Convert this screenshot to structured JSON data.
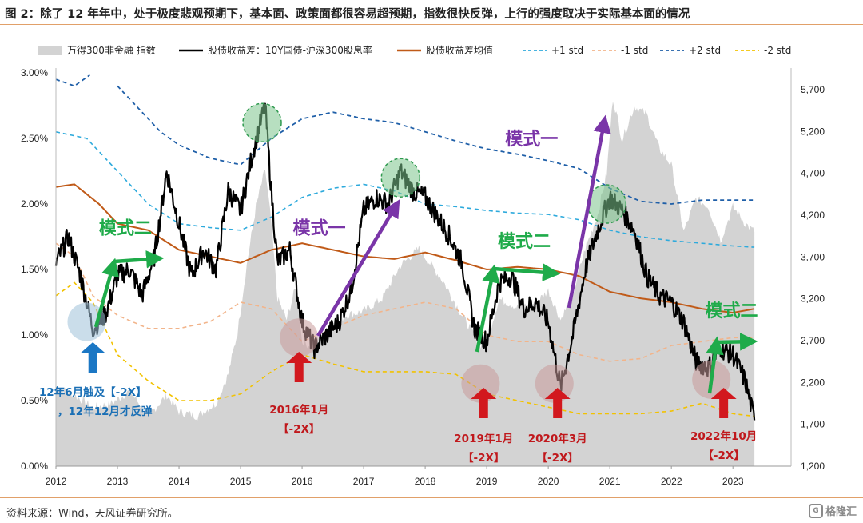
{
  "page": {
    "title": "图 2：除了 12 年年中，处于极度悲观预期下，基本面、政策面都很容易超预期，指数很快反弹，上行的强度取决于实际基本面的情况",
    "source": "资料来源：Wind，天风证券研究所。",
    "watermark": "格隆汇"
  },
  "chart_data": {
    "type": "line",
    "title": "",
    "xlabel": "",
    "ylabel": "",
    "x_ticks": [
      "2012",
      "2013",
      "2014",
      "2015",
      "2016",
      "2017",
      "2018",
      "2019",
      "2020",
      "2021",
      "2022",
      "2023"
    ],
    "y_left_ticks": [
      "0.00%",
      "0.50%",
      "1.00%",
      "1.50%",
      "2.00%",
      "2.50%",
      "3.00%"
    ],
    "y_right_ticks": [
      "1,200",
      "1,700",
      "2,200",
      "2,700",
      "3,200",
      "3,700",
      "4,200",
      "4,700",
      "5,200",
      "5,700"
    ],
    "ylim_left": [
      0,
      3.0
    ],
    "ylim_right": [
      1200,
      5900
    ],
    "legend": [
      {
        "name": "万得300非金融 指数",
        "color": "#d3d3d3",
        "style": "area"
      },
      {
        "name": "股债收益差：10Y国债-沪深300股息率",
        "color": "#000000",
        "style": "solid"
      },
      {
        "name": "股债收益差均值",
        "color": "#c05a18",
        "style": "solid"
      },
      {
        "name": "+1 std",
        "color": "#2eaadc",
        "style": "dashed"
      },
      {
        "name": "-1 std",
        "color": "#f2b48a",
        "style": "dashed"
      },
      {
        "name": "+2 std",
        "color": "#1f5fa8",
        "style": "dashed"
      },
      {
        "name": "-2 std",
        "color": "#f2c200",
        "style": "dashed"
      }
    ],
    "series": [
      {
        "name": "万得300非金融 指数",
        "axis": "right",
        "x": [
          2012.0,
          2012.3,
          2012.6,
          2012.9,
          2013.2,
          2013.5,
          2013.8,
          2014.0,
          2014.3,
          2014.6,
          2014.8,
          2014.95,
          2015.1,
          2015.25,
          2015.4,
          2015.5,
          2015.6,
          2015.75,
          2015.9,
          2016.0,
          2016.1,
          2016.4,
          2016.7,
          2017.0,
          2017.3,
          2017.6,
          2017.9,
          2018.1,
          2018.3,
          2018.6,
          2018.9,
          2019.0,
          2019.2,
          2019.5,
          2019.8,
          2020.0,
          2020.2,
          2020.4,
          2020.6,
          2020.8,
          2020.95,
          2021.05,
          2021.2,
          2021.4,
          2021.6,
          2021.8,
          2022.0,
          2022.2,
          2022.4,
          2022.6,
          2022.8,
          2023.0,
          2023.2,
          2023.35
        ],
        "values": [
          2150,
          2050,
          1900,
          1950,
          2100,
          1800,
          2050,
          1850,
          1800,
          1950,
          2300,
          2800,
          3600,
          4300,
          4750,
          4100,
          3200,
          2950,
          3350,
          2700,
          2650,
          2800,
          3000,
          3050,
          3200,
          3600,
          3800,
          3600,
          3400,
          3000,
          2650,
          2700,
          3200,
          3100,
          3150,
          3300,
          2950,
          3250,
          3800,
          4200,
          4700,
          5600,
          5100,
          5500,
          5400,
          5000,
          4800,
          4000,
          4400,
          4300,
          3900,
          4300,
          4100,
          4000
        ]
      },
      {
        "name": "股债收益差：10Y国债-沪深300股息率",
        "axis": "left",
        "x": [
          2012.0,
          2012.2,
          2012.4,
          2012.6,
          2012.8,
          2013.0,
          2013.2,
          2013.4,
          2013.6,
          2013.8,
          2014.0,
          2014.2,
          2014.4,
          2014.6,
          2014.8,
          2015.0,
          2015.2,
          2015.4,
          2015.5,
          2015.6,
          2015.8,
          2016.0,
          2016.2,
          2016.4,
          2016.6,
          2016.8,
          2017.0,
          2017.2,
          2017.4,
          2017.6,
          2017.8,
          2018.0,
          2018.2,
          2018.4,
          2018.6,
          2018.8,
          2019.0,
          2019.2,
          2019.4,
          2019.6,
          2019.8,
          2020.0,
          2020.2,
          2020.4,
          2020.6,
          2020.8,
          2021.0,
          2021.2,
          2021.4,
          2021.6,
          2021.8,
          2022.0,
          2022.2,
          2022.4,
          2022.6,
          2022.8,
          2023.0,
          2023.2,
          2023.35
        ],
        "values": [
          1.55,
          1.75,
          1.45,
          1.05,
          1.15,
          1.45,
          1.5,
          1.3,
          1.6,
          2.25,
          1.85,
          1.45,
          1.65,
          1.5,
          2.1,
          1.95,
          2.4,
          2.75,
          2.1,
          1.55,
          1.65,
          1.1,
          0.9,
          1.0,
          1.1,
          1.35,
          1.95,
          2.05,
          2.0,
          2.25,
          2.1,
          2.05,
          1.9,
          1.75,
          1.55,
          1.05,
          0.95,
          1.4,
          1.45,
          1.2,
          1.25,
          1.1,
          0.6,
          1.0,
          1.5,
          1.8,
          2.05,
          1.95,
          1.8,
          1.45,
          1.3,
          1.25,
          1.1,
          0.8,
          0.75,
          0.9,
          0.85,
          0.65,
          0.35
        ]
      },
      {
        "name": "股债收益差均值",
        "axis": "left",
        "x": [
          2012.0,
          2012.3,
          2012.7,
          2013.0,
          2013.5,
          2014.0,
          2014.5,
          2015.0,
          2015.5,
          2016.0,
          2016.5,
          2017.0,
          2017.5,
          2018.0,
          2018.5,
          2019.0,
          2019.5,
          2020.0,
          2020.5,
          2021.0,
          2021.5,
          2022.0,
          2022.5,
          2023.0,
          2023.35
        ],
        "values": [
          2.13,
          2.15,
          2.0,
          1.85,
          1.8,
          1.65,
          1.6,
          1.55,
          1.65,
          1.7,
          1.65,
          1.6,
          1.58,
          1.63,
          1.57,
          1.5,
          1.52,
          1.5,
          1.45,
          1.33,
          1.28,
          1.25,
          1.2,
          1.17,
          1.2
        ]
      },
      {
        "name": "+1 std",
        "axis": "left",
        "x": [
          2012.0,
          2012.5,
          2013.0,
          2013.5,
          2014.0,
          2014.5,
          2015.0,
          2015.5,
          2016.0,
          2016.5,
          2017.0,
          2017.5,
          2018.0,
          2018.5,
          2019.0,
          2019.5,
          2020.0,
          2020.5,
          2021.0,
          2021.5,
          2022.0,
          2022.5,
          2023.0,
          2023.35
        ],
        "values": [
          2.55,
          2.5,
          2.25,
          2.0,
          1.85,
          1.82,
          1.8,
          1.9,
          2.05,
          2.12,
          2.15,
          2.1,
          2.0,
          1.98,
          1.95,
          1.93,
          1.92,
          1.88,
          1.8,
          1.75,
          1.72,
          1.7,
          1.68,
          1.67
        ]
      },
      {
        "name": "-1 std",
        "axis": "left",
        "x": [
          2012.0,
          2012.3,
          2012.6,
          2013.0,
          2013.5,
          2014.0,
          2014.5,
          2015.0,
          2015.5,
          2016.0,
          2016.5,
          2017.0,
          2017.5,
          2018.0,
          2018.5,
          2019.0,
          2019.5,
          2020.0,
          2020.5,
          2021.0,
          2021.5,
          2022.0,
          2022.5,
          2023.0,
          2023.35
        ],
        "values": [
          1.7,
          1.6,
          1.3,
          1.15,
          1.05,
          1.05,
          1.1,
          1.25,
          1.2,
          0.95,
          1.05,
          1.15,
          1.2,
          1.25,
          1.2,
          1.0,
          0.95,
          0.95,
          0.85,
          0.8,
          0.82,
          0.92,
          0.95,
          0.98,
          0.98
        ]
      },
      {
        "name": "+2 std",
        "axis": "left",
        "x": [
          2012.0,
          2012.3,
          2012.6,
          2013.0,
          2013.3,
          2013.7,
          2014.0,
          2014.5,
          2015.0,
          2015.5,
          2016.0,
          2016.5,
          2017.0,
          2017.5,
          2018.0,
          2018.5,
          2019.0,
          2019.5,
          2020.0,
          2020.5,
          2021.0,
          2021.5,
          2022.0,
          2022.5,
          2023.0,
          2023.35
        ],
        "values": [
          2.95,
          2.9,
          3.0,
          2.9,
          2.75,
          2.55,
          2.45,
          2.35,
          2.3,
          2.5,
          2.65,
          2.7,
          2.65,
          2.62,
          2.55,
          2.48,
          2.42,
          2.38,
          2.33,
          2.27,
          2.12,
          2.02,
          2.0,
          2.03,
          2.03,
          2.03
        ]
      },
      {
        "name": "-2 std",
        "axis": "left",
        "x": [
          2012.0,
          2012.3,
          2012.6,
          2013.0,
          2013.5,
          2014.0,
          2014.5,
          2015.0,
          2015.5,
          2016.0,
          2016.5,
          2017.0,
          2017.5,
          2018.0,
          2018.5,
          2019.0,
          2019.5,
          2020.0,
          2020.5,
          2021.0,
          2021.5,
          2022.0,
          2022.5,
          2023.0,
          2023.35
        ],
        "values": [
          1.3,
          1.4,
          1.25,
          0.85,
          0.65,
          0.5,
          0.5,
          0.55,
          0.72,
          0.85,
          0.78,
          0.72,
          0.72,
          0.72,
          0.7,
          0.55,
          0.5,
          0.45,
          0.4,
          0.4,
          0.4,
          0.42,
          0.48,
          0.4,
          0.38
        ]
      }
    ],
    "circles": [
      {
        "kind": "trough",
        "x": 2012.5,
        "y": 1.1,
        "color": "#9fc1d9"
      },
      {
        "kind": "peak",
        "x": 2015.35,
        "y": 2.62,
        "color": "#7cc48d"
      },
      {
        "kind": "trough",
        "x": 2015.95,
        "y": 0.98,
        "color": "#c99a9a"
      },
      {
        "kind": "peak",
        "x": 2017.6,
        "y": 2.2,
        "color": "#7cc48d"
      },
      {
        "kind": "trough",
        "x": 2018.9,
        "y": 0.63,
        "color": "#c99a9a"
      },
      {
        "kind": "trough",
        "x": 2020.1,
        "y": 0.63,
        "color": "#c99a9a"
      },
      {
        "kind": "peak",
        "x": 2020.95,
        "y": 2.0,
        "color": "#7cc48d"
      },
      {
        "kind": "trough",
        "x": 2022.65,
        "y": 0.66,
        "color": "#c99a9a"
      }
    ],
    "annotations": [
      {
        "text": "模式二",
        "color": "#1fab4a",
        "x": 2012.7,
        "y": 1.77
      },
      {
        "text": "模式一",
        "color": "#7a35a8",
        "x": 2015.85,
        "y": 1.77
      },
      {
        "text": "模式一",
        "color": "#7a35a8",
        "x": 2019.3,
        "y": 2.45
      },
      {
        "text": "模式二",
        "color": "#1fab4a",
        "x": 2019.18,
        "y": 1.67
      },
      {
        "text": "模式二",
        "color": "#1fab4a",
        "x": 2022.55,
        "y": 1.14
      }
    ],
    "event_labels": [
      {
        "lines": [
          "12年6月触及【-2X】",
          "，12年12月才反弹"
        ],
        "color": "#1a6fb5",
        "x": 2012.6
      },
      {
        "lines": [
          "2016年1月",
          "【-2X】"
        ],
        "color": "#c0181c",
        "x": 2015.95
      },
      {
        "lines": [
          "2019年1月",
          "【-2X】"
        ],
        "color": "#c0181c",
        "x": 2018.95
      },
      {
        "lines": [
          "2020年3月",
          "【-2X】"
        ],
        "color": "#c0181c",
        "x": 2020.15
      },
      {
        "lines": [
          "2022年10月",
          "【-2X】"
        ],
        "color": "#c0181c",
        "x": 2022.85
      }
    ]
  }
}
